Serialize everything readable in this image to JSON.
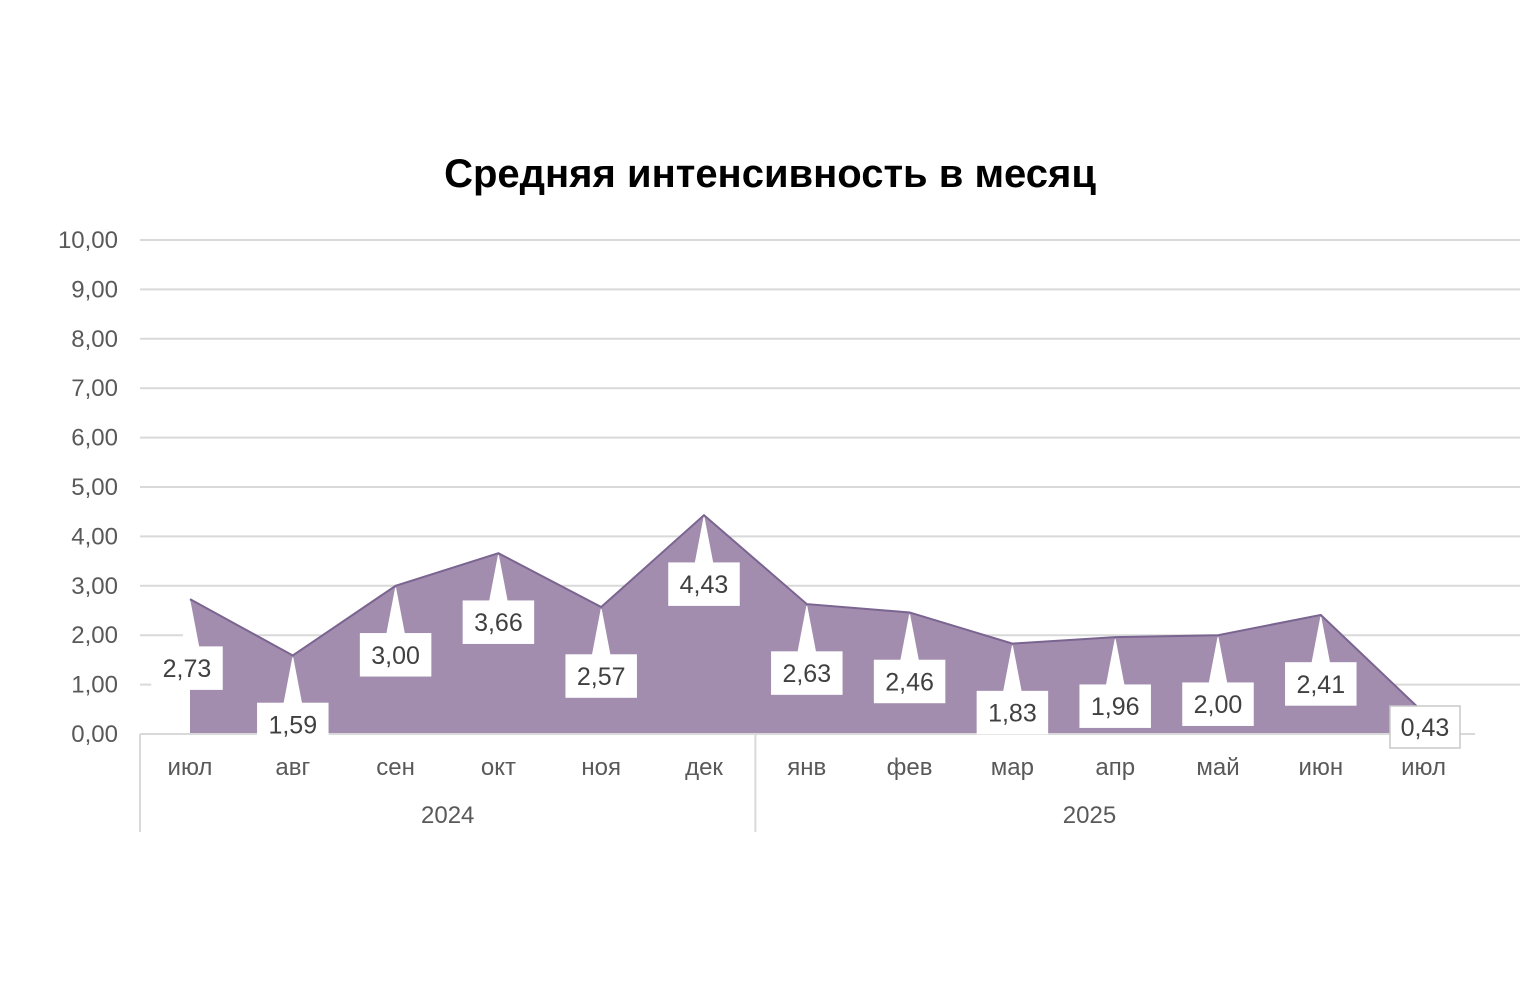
{
  "chart_data": {
    "type": "area",
    "title": "Средняя интенсивность в месяц",
    "xlabel": "",
    "ylabel": "",
    "ylim": [
      0,
      10
    ],
    "ytick_labels": [
      "0,00",
      "1,00",
      "2,00",
      "3,00",
      "4,00",
      "5,00",
      "6,00",
      "7,00",
      "8,00",
      "9,00",
      "10,00"
    ],
    "grid": true,
    "legend": "none",
    "categories": [
      "июл",
      "авг",
      "сен",
      "окт",
      "ноя",
      "дек",
      "янв",
      "фев",
      "мар",
      "апр",
      "май",
      "июн",
      "июл"
    ],
    "groups": [
      {
        "label": "2024",
        "count": 6
      },
      {
        "label": "2025",
        "count": 7
      }
    ],
    "values": [
      2.73,
      1.59,
      3.0,
      3.66,
      2.57,
      4.43,
      2.63,
      2.46,
      1.83,
      1.96,
      2.0,
      2.41,
      0.43
    ],
    "value_labels": [
      "2,73",
      "1,59",
      "3,00",
      "3,66",
      "2,57",
      "4,43",
      "2,63",
      "2,46",
      "1,83",
      "1,96",
      "2,00",
      "2,41",
      "0,43"
    ],
    "colors": {
      "area_fill": "#a28daf",
      "area_line": "#7a6490",
      "grid": "#d9d9d9",
      "axis": "#d9d9d9",
      "text": "#595959"
    }
  }
}
